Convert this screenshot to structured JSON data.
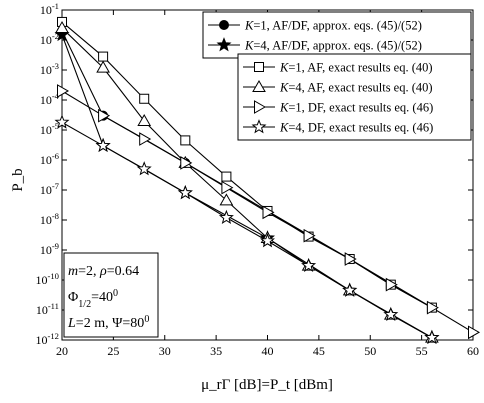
{
  "chart_data": {
    "type": "line",
    "title": "",
    "xlabel": "μ_rΓ [dB]=P_t [dBm]",
    "ylabel": "P_b",
    "xlim": [
      20,
      60
    ],
    "ylim_log10": [
      -12,
      -1
    ],
    "yscale": "log",
    "grid": false,
    "x_ticks": [
      20,
      25,
      30,
      35,
      40,
      45,
      50,
      55,
      60
    ],
    "y_tick_exponents": [
      -12,
      -11,
      -10,
      -9,
      -8,
      -7,
      -6,
      -5,
      -4,
      -3,
      -2,
      -1
    ],
    "legend_upper": [
      {
        "parts": [
          [
            "it",
            "K"
          ],
          [
            "",
            "=1, AF/DF, approx. eqs. (45)/(52)"
          ]
        ]
      },
      {
        "parts": [
          [
            "it",
            "K"
          ],
          [
            "",
            "=4, AF/DF, approx. eqs. (45)/(52)"
          ]
        ]
      }
    ],
    "legend_lower": [
      {
        "parts": [
          [
            "it",
            "K"
          ],
          [
            "",
            "=1, AF, exact results eq. (40)"
          ]
        ]
      },
      {
        "parts": [
          [
            "it",
            "K"
          ],
          [
            "",
            "=4, AF, exact results eq. (40)"
          ]
        ]
      },
      {
        "parts": [
          [
            "it",
            "K"
          ],
          [
            "",
            "=1, DF, exact results eq. (46)"
          ]
        ]
      },
      {
        "parts": [
          [
            "it",
            "K"
          ],
          [
            "",
            "=4, DF, exact results eq. (46)"
          ]
        ]
      }
    ],
    "annotation_lines": [
      [
        [
          "it",
          "m"
        ],
        [
          "",
          "=2, "
        ],
        [
          "it",
          "ρ"
        ],
        [
          "",
          "=0.64"
        ]
      ],
      [
        [
          "",
          "Φ"
        ],
        [
          "sub",
          "1/2"
        ],
        [
          "",
          "=40"
        ],
        [
          "sup",
          "0"
        ]
      ],
      [
        [
          "it",
          "L"
        ],
        [
          "",
          "=2 m, Ψ=80"
        ],
        [
          "sup",
          "0"
        ]
      ]
    ],
    "series": [
      {
        "name": "K=1, AF/DF, approx. eqs. (45)/(52)",
        "marker": "filled-circle",
        "x": [
          20,
          24,
          32,
          40,
          48,
          56
        ],
        "y": [
          0.02,
          3e-05,
          8e-07,
          2e-08,
          5e-10,
          1.2e-11
        ]
      },
      {
        "name": "K=4, AF/DF, approx. eqs. (45)/(52)",
        "marker": "filled-star",
        "x": [
          20,
          24,
          32,
          40,
          48,
          56
        ],
        "y": [
          0.015,
          3e-06,
          8e-08,
          2.5e-09,
          4.5e-11,
          1.2e-12
        ]
      },
      {
        "name": "K=1, AF, exact results eq. (40)",
        "marker": "open-square",
        "x": [
          20,
          24,
          28,
          32,
          36,
          40,
          44,
          48,
          52,
          56
        ],
        "y": [
          0.04,
          0.0028,
          0.00011,
          4.5e-06,
          2.8e-07,
          2e-08,
          2.8e-09,
          5e-10,
          7e-11,
          1.2e-11
        ]
      },
      {
        "name": "K=4, AF, exact results eq. (40)",
        "marker": "open-triangle-up",
        "x": [
          20,
          24,
          28,
          32,
          36,
          40,
          44,
          48,
          52,
          56
        ],
        "y": [
          0.025,
          0.0012,
          2e-05,
          8e-07,
          4.5e-08,
          2.5e-09,
          3e-10,
          4.5e-11,
          7e-12,
          1.2e-12
        ]
      },
      {
        "name": "K=1, DF, exact results eq. (46)",
        "marker": "open-triangle-right",
        "x": [
          20,
          24,
          28,
          32,
          36,
          40,
          44,
          48,
          52,
          56,
          60
        ],
        "y": [
          0.0002,
          3e-05,
          5e-06,
          8e-07,
          1.2e-07,
          1.8e-08,
          3e-09,
          5e-10,
          7e-11,
          1.2e-11,
          1.8e-12
        ]
      },
      {
        "name": "K=4, DF, exact results eq. (46)",
        "marker": "open-star",
        "x": [
          20,
          24,
          28,
          32,
          36,
          40,
          44,
          48,
          52,
          56
        ],
        "y": [
          1.8e-05,
          3e-06,
          5e-07,
          8e-08,
          1.2e-08,
          2e-09,
          3e-10,
          4.5e-11,
          7e-12,
          1.2e-12
        ]
      }
    ]
  }
}
